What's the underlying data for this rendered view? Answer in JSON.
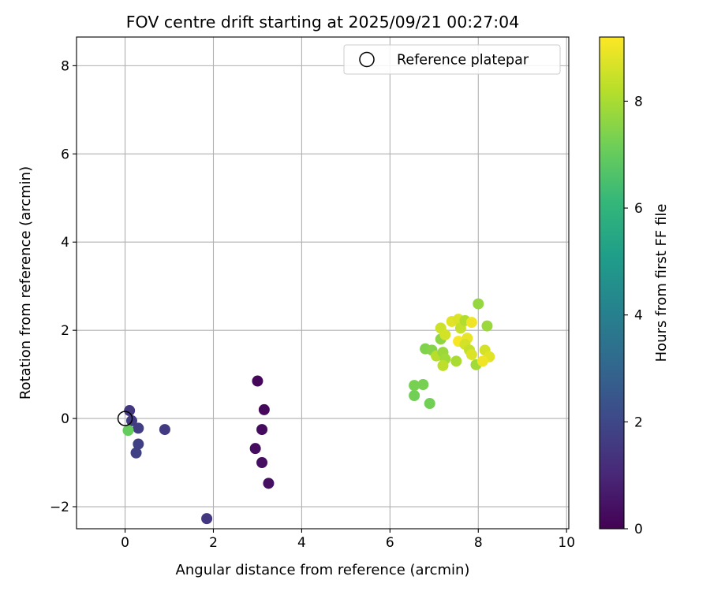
{
  "chart_data": {
    "type": "scatter",
    "title": "FOV centre drift starting at 2025/09/21 00:27:04",
    "xlabel": "Angular distance from reference (arcmin)",
    "ylabel": "Rotation from reference (arcmin)",
    "xlim": [
      -1.1,
      10.05
    ],
    "ylim": [
      -2.5,
      8.65
    ],
    "xticks": [
      0,
      2,
      4,
      6,
      8,
      10
    ],
    "yticks": [
      -2,
      0,
      2,
      4,
      6,
      8
    ],
    "grid": true,
    "legend": {
      "placement": "top-right",
      "entries": [
        "Reference platepar"
      ]
    },
    "reference_point": {
      "x": 0,
      "y": 0
    },
    "colorbar": {
      "label": "Hours from first FF file",
      "min": 0,
      "max": 9.2,
      "ticks": [
        0,
        2,
        4,
        6,
        8
      ],
      "colormap": [
        "#440154",
        "#482878",
        "#3e4989",
        "#31688e",
        "#26828e",
        "#1f9e89",
        "#35b779",
        "#6ece58",
        "#b5de2b",
        "#fde725"
      ]
    },
    "points": [
      {
        "x": 3.0,
        "y": 0.85,
        "t": 0.15
      },
      {
        "x": 3.15,
        "y": 0.2,
        "t": 0.2
      },
      {
        "x": 3.1,
        "y": -0.25,
        "t": 0.25
      },
      {
        "x": 2.95,
        "y": -0.68,
        "t": 0.3
      },
      {
        "x": 3.1,
        "y": -1.0,
        "t": 0.35
      },
      {
        "x": 3.25,
        "y": -1.47,
        "t": 0.4
      },
      {
        "x": 1.85,
        "y": -2.27,
        "t": 1.5
      },
      {
        "x": 0.1,
        "y": 0.18,
        "t": 1.5
      },
      {
        "x": 0.15,
        "y": -0.05,
        "t": 1.6
      },
      {
        "x": 0.3,
        "y": -0.22,
        "t": 1.7
      },
      {
        "x": 0.9,
        "y": -0.25,
        "t": 1.6
      },
      {
        "x": 0.3,
        "y": -0.58,
        "t": 1.8
      },
      {
        "x": 0.25,
        "y": -0.78,
        "t": 1.8
      },
      {
        "x": 0.07,
        "y": -0.27,
        "t": 7.0
      },
      {
        "x": 6.9,
        "y": 0.34,
        "t": 7.2
      },
      {
        "x": 6.55,
        "y": 0.52,
        "t": 7.2
      },
      {
        "x": 6.55,
        "y": 0.75,
        "t": 7.3
      },
      {
        "x": 6.75,
        "y": 0.77,
        "t": 7.3
      },
      {
        "x": 6.8,
        "y": 1.58,
        "t": 7.4
      },
      {
        "x": 6.95,
        "y": 1.55,
        "t": 7.5
      },
      {
        "x": 7.05,
        "y": 1.42,
        "t": 8.2
      },
      {
        "x": 7.15,
        "y": 1.8,
        "t": 7.6
      },
      {
        "x": 7.2,
        "y": 1.5,
        "t": 7.8
      },
      {
        "x": 7.25,
        "y": 1.35,
        "t": 7.9
      },
      {
        "x": 7.2,
        "y": 1.2,
        "t": 8.3
      },
      {
        "x": 7.5,
        "y": 1.3,
        "t": 8.0
      },
      {
        "x": 7.15,
        "y": 2.05,
        "t": 8.5
      },
      {
        "x": 7.25,
        "y": 1.9,
        "t": 8.6
      },
      {
        "x": 7.4,
        "y": 2.2,
        "t": 8.8
      },
      {
        "x": 7.55,
        "y": 2.25,
        "t": 8.7
      },
      {
        "x": 7.6,
        "y": 2.05,
        "t": 8.4
      },
      {
        "x": 7.7,
        "y": 2.22,
        "t": 8.1
      },
      {
        "x": 7.85,
        "y": 2.18,
        "t": 9.0
      },
      {
        "x": 7.55,
        "y": 1.75,
        "t": 9.1
      },
      {
        "x": 7.75,
        "y": 1.82,
        "t": 8.9
      },
      {
        "x": 7.7,
        "y": 1.68,
        "t": 8.6
      },
      {
        "x": 7.8,
        "y": 1.55,
        "t": 8.4
      },
      {
        "x": 7.85,
        "y": 1.45,
        "t": 8.7
      },
      {
        "x": 7.95,
        "y": 1.22,
        "t": 7.9
      },
      {
        "x": 8.0,
        "y": 2.6,
        "t": 7.7
      },
      {
        "x": 8.2,
        "y": 2.1,
        "t": 7.8
      },
      {
        "x": 8.15,
        "y": 1.55,
        "t": 8.6
      },
      {
        "x": 8.25,
        "y": 1.4,
        "t": 8.8
      },
      {
        "x": 8.1,
        "y": 1.3,
        "t": 9.0
      }
    ]
  }
}
